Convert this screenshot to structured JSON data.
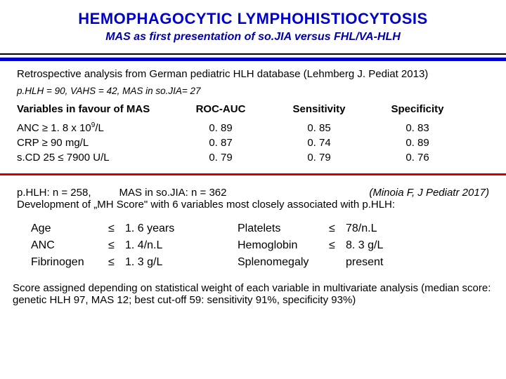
{
  "title": "HEMOPHAGOCYTIC LYMPHOHISTIOCYTOSIS",
  "subtitle": "MAS as first presentation of so.JIA versus FHL/VA-HLH",
  "retro": "Retrospective analysis from German pediatric HLH database (Lehmberg J. Pediat 2013)",
  "study_counts": "p.HLH = 90, VAHS = 42, MAS in so.JIA= 27",
  "table": {
    "headers": {
      "var": "Variables in favour of MAS",
      "roc": "ROC-AUC",
      "sens": "Sensitivity",
      "spec": "Specificity"
    },
    "rows": [
      {
        "var_html": "ANC ≥ 1. 8 x 10",
        "var_sup": "9",
        "var_tail": "/L",
        "roc": "0. 89",
        "sens": "0. 85",
        "spec": "0. 83"
      },
      {
        "var": "CRP ≥ 90 mg/L",
        "roc": "0. 87",
        "sens": "0. 74",
        "spec": "0. 89"
      },
      {
        "var": "s.CD 25 ≤ 7900 U/L",
        "roc": "0. 79",
        "sens": "0. 79",
        "spec": "0. 76"
      }
    ]
  },
  "block2": {
    "n1": "p.HLH:    n = 258,",
    "n2": "MAS in so.JIA:    n = 362",
    "ref": "(Minoia F, J Pediatr 2017)",
    "dev": "Development of „MH Score\" with 6 variables most closely associated with p.HLH:"
  },
  "vars6": {
    "left": [
      {
        "label": "Age",
        "op": "≤",
        "val": "1. 6 years"
      },
      {
        "label": "ANC",
        "op": "≤",
        "val": "1. 4/n.L"
      },
      {
        "label": "Fibrinogen",
        "op": "≤",
        "val": "1. 3 g/L"
      }
    ],
    "right": [
      {
        "label": "Platelets",
        "op": "≤",
        "val": "78/n.L"
      },
      {
        "label": "Hemoglobin",
        "op": "≤",
        "val": "8. 3 g/L"
      },
      {
        "label": "Splenomegaly",
        "op": "",
        "val": "present"
      }
    ]
  },
  "footer": "Score assigned depending on statistical weight of each variable in multivariate analysis (median score: genetic HLH 97, MAS 12; best cut-off 59: sensitivity 91%, specificity 93%)"
}
